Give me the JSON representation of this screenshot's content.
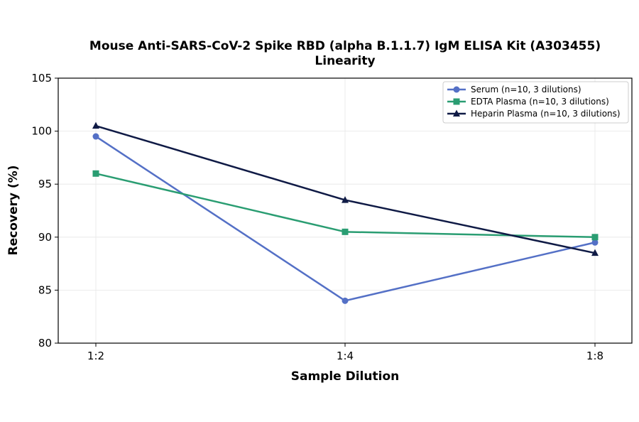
{
  "chart_data": {
    "type": "line",
    "title": "Mouse Anti-SARS-CoV-2 Spike RBD (alpha B.1.1.7) IgM ELISA Kit (A303455)",
    "subtitle": "Linearity",
    "xlabel": "Sample Dilution",
    "ylabel": "Recovery (%)",
    "categories": [
      "1:2",
      "1:4",
      "1:8"
    ],
    "ylim": [
      80,
      105
    ],
    "yticks": [
      "80",
      "85",
      "90",
      "95",
      "100",
      "105"
    ],
    "grid": true,
    "legend_position": "top-right",
    "series": [
      {
        "name": "Serum (n=10, 3 dilutions)",
        "values": [
          99.5,
          84.0,
          89.5
        ],
        "color": "#5470c6",
        "marker": "circle"
      },
      {
        "name": "EDTA Plasma (n=10, 3 dilutions)",
        "values": [
          96.0,
          90.5,
          90.0
        ],
        "color": "#2a9d72",
        "marker": "square"
      },
      {
        "name": "Heparin Plasma (n=10, 3 dilutions)",
        "values": [
          100.5,
          93.5,
          88.5
        ],
        "color": "#0f1a45",
        "marker": "triangle"
      }
    ]
  }
}
